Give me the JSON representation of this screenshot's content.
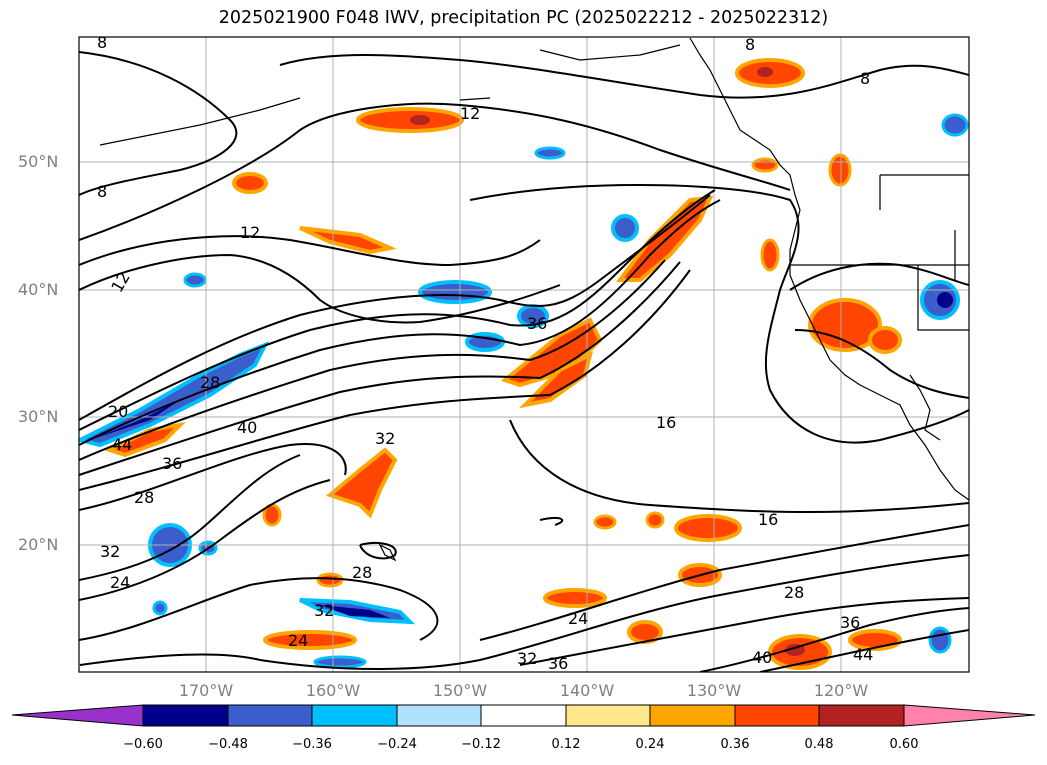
{
  "title": "2025021900 F048 IWV, precipitation PC (2025022212 - 2025022312)",
  "lat_labels": [
    "50°N",
    "40°N",
    "30°N",
    "20°N"
  ],
  "lon_labels": [
    "170°W",
    "160°W",
    "150°W",
    "140°W",
    "130°W",
    "120°W"
  ],
  "colorbar": {
    "ticks": [
      "−0.60",
      "−0.48",
      "−0.36",
      "−0.24",
      "−0.12",
      "0.12",
      "0.24",
      "0.36",
      "0.48",
      "0.60"
    ],
    "colors": [
      "#9932cc",
      "#00008b",
      "#3a5fcd",
      "#00bfff",
      "#b0e2ff",
      "#ffffff",
      "#ffe88c",
      "#ffa500",
      "#ff4500",
      "#b22222",
      "#ff82ab"
    ]
  },
  "contour_labels": [
    "8",
    "12",
    "16",
    "20",
    "24",
    "28",
    "32",
    "36",
    "40",
    "44"
  ],
  "colors": {
    "coast": "#000000",
    "grid": "#b0b0b0",
    "label": "#808080"
  }
}
